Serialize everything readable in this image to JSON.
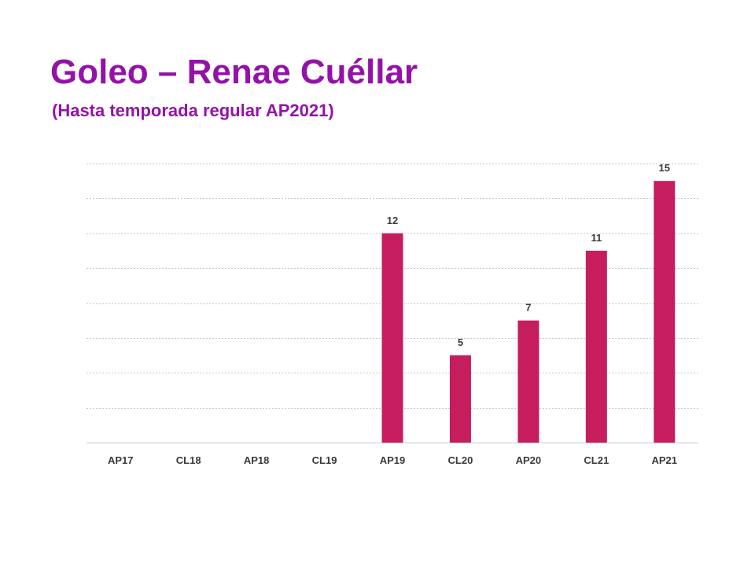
{
  "header": {
    "title": "Goleo – Renae Cuéllar",
    "subtitle": "(Hasta temporada regular AP2021)"
  },
  "colors": {
    "title": "#9313a8",
    "bar": "#c51d5e",
    "gridline": "#c8c8c8",
    "text": "#3a3a3a"
  },
  "chart_data": {
    "type": "bar",
    "categories": [
      "AP17",
      "CL18",
      "AP18",
      "CL19",
      "AP19",
      "CL20",
      "AP20",
      "CL21",
      "AP21"
    ],
    "values": [
      0,
      0,
      0,
      0,
      12,
      5,
      7,
      11,
      15
    ],
    "data_labels": [
      "",
      "",
      "",
      "",
      "12",
      "5",
      "7",
      "11",
      "15"
    ],
    "ylim": [
      0,
      16
    ],
    "gridline_step": 2,
    "grid": true,
    "legend": "none"
  }
}
